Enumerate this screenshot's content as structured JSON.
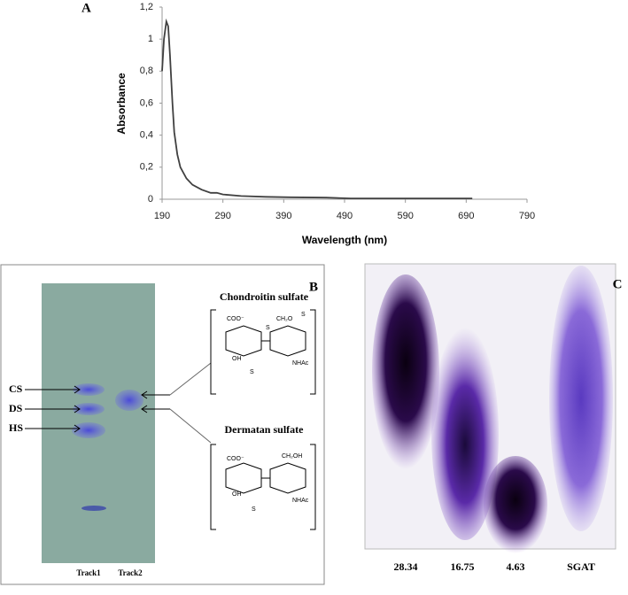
{
  "chart_data": {
    "type": "line",
    "panel_label": "A",
    "xlabel": "Wavelength (nm)",
    "ylabel": "Absorbance",
    "x": [
      190,
      193,
      197,
      200,
      203,
      207,
      210,
      215,
      220,
      230,
      240,
      255,
      270,
      280,
      290,
      320,
      360,
      400,
      460,
      500,
      600,
      700
    ],
    "values": [
      0.8,
      1.0,
      1.11,
      1.08,
      0.9,
      0.6,
      0.42,
      0.28,
      0.2,
      0.13,
      0.09,
      0.06,
      0.04,
      0.04,
      0.03,
      0.02,
      0.015,
      0.012,
      0.01,
      0.005,
      0.005,
      0.005
    ],
    "color": "#404040",
    "xlim": [
      190,
      790
    ],
    "xticks": [
      190,
      290,
      390,
      490,
      590,
      690,
      790
    ],
    "ylim": [
      0,
      1.2
    ],
    "yticks": [
      0,
      {
        "value": 0.2,
        "label": "0,2"
      },
      {
        "value": 0.4,
        "label": "0,4"
      },
      {
        "value": 0.6,
        "label": "0,6"
      },
      {
        "value": 0.8,
        "label": "0,8"
      },
      1,
      {
        "value": 1.2,
        "label": "1,2"
      }
    ]
  },
  "panel_b": {
    "label": "B",
    "bands": [
      "CS",
      "DS",
      "HS"
    ],
    "tracks": [
      "Track1",
      "Track2"
    ],
    "structures": [
      {
        "name": "Chondroitin sulfate",
        "groups": [
          "COO⁻",
          "CH₂O",
          "S",
          "S",
          "OH",
          "S",
          "NHAc"
        ]
      },
      {
        "name": "Dermatan sulfate",
        "groups": [
          "CH₂OH",
          "COO⁻",
          "OH",
          "S",
          "NHAc"
        ]
      }
    ]
  },
  "panel_c": {
    "label": "C",
    "lanes": [
      "28.34",
      "16.75",
      "4.63",
      "SGAT"
    ]
  }
}
